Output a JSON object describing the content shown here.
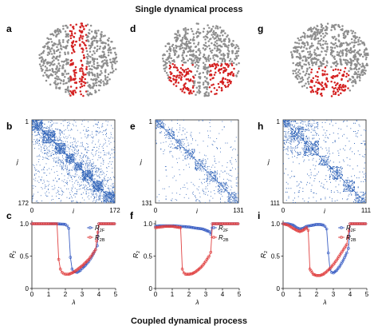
{
  "top_heading": "Single dynamical process",
  "bottom_heading": "Coupled dynamical process",
  "colors": {
    "grey_node": "#8e8e8e",
    "red_node": "#d42020",
    "matrix_blue": "#2f63b8",
    "forward": "#3b5fc4",
    "backward": "#e04141"
  },
  "columns": [
    {
      "brain": {
        "label": "a",
        "highlight": "midline"
      },
      "matrix": {
        "label": "b",
        "row_axis": "j",
        "col_axis": "i",
        "start_tick": "1",
        "zero_tick": "0",
        "end_tick": "172",
        "size": 172,
        "blocks": [
          [
            0,
            22
          ],
          [
            22,
            48
          ],
          [
            48,
            70
          ],
          [
            70,
            88
          ],
          [
            88,
            104
          ],
          [
            104,
            126
          ],
          [
            126,
            148
          ],
          [
            148,
            172
          ]
        ],
        "structure": "diagonal-band"
      },
      "chart": {
        "label": "c"
      }
    },
    {
      "brain": {
        "label": "d",
        "highlight": "posterior-lateral"
      },
      "matrix": {
        "label": "e",
        "row_axis": "j",
        "col_axis": "i",
        "start_tick": "1",
        "zero_tick": "0",
        "end_tick": "131",
        "size": 131,
        "blocks": [
          [
            0,
            14
          ],
          [
            14,
            30
          ],
          [
            30,
            46
          ],
          [
            46,
            62
          ],
          [
            62,
            80
          ],
          [
            80,
            98
          ],
          [
            98,
            114
          ],
          [
            114,
            131
          ]
        ],
        "structure": "two-cluster"
      },
      "chart": {
        "label": "f"
      }
    },
    {
      "brain": {
        "label": "g",
        "highlight": "posterior-midline"
      },
      "matrix": {
        "label": "h",
        "row_axis": "j",
        "col_axis": "i",
        "start_tick": "1",
        "zero_tick": "0",
        "end_tick": "111",
        "size": 111,
        "blocks": [
          [
            0,
            10
          ],
          [
            10,
            28
          ],
          [
            28,
            48
          ],
          [
            48,
            62
          ],
          [
            62,
            80
          ],
          [
            80,
            96
          ],
          [
            96,
            111
          ]
        ],
        "structure": "dense-cluster"
      },
      "chart": {
        "label": "i"
      }
    }
  ],
  "chart_data": [
    {
      "type": "scatter",
      "xlabel": "λ",
      "ylabel": "R2",
      "xticks": [
        "0",
        "1",
        "2",
        "3",
        "4",
        "5"
      ],
      "yticks": [
        "0",
        "0.5",
        "1.0"
      ],
      "xlim": [
        0,
        5
      ],
      "ylim": [
        0,
        1.05
      ],
      "legend_position": "right",
      "series": [
        {
          "name": "R2F",
          "label_main": "R",
          "label_sub": "2F",
          "x": [
            0,
            0.5,
            1,
            1.5,
            2,
            2.1,
            2.2,
            2.3,
            2.4,
            2.5,
            2.7,
            2.9,
            3.0,
            3.2,
            3.4,
            3.6,
            3.8,
            3.9,
            4.0,
            4.5,
            5.0
          ],
          "y": [
            1,
            1,
            1,
            1,
            0.99,
            0.97,
            0.93,
            0.48,
            0.3,
            0.26,
            0.25,
            0.28,
            0.31,
            0.36,
            0.42,
            0.5,
            0.6,
            0.66,
            1,
            1,
            1
          ]
        },
        {
          "name": "R2B",
          "label_main": "R",
          "label_sub": "2B",
          "x": [
            0,
            0.5,
            1,
            1.4,
            1.5,
            1.6,
            1.7,
            1.8,
            1.9,
            2.0,
            2.1,
            2.2,
            2.4,
            2.6,
            2.8,
            3.0,
            3.2,
            3.4,
            3.6,
            3.8,
            4.0,
            4.5,
            5.0
          ],
          "y": [
            1,
            1,
            1,
            1,
            1,
            0.45,
            0.3,
            0.25,
            0.23,
            0.22,
            0.22,
            0.22,
            0.24,
            0.27,
            0.31,
            0.35,
            0.4,
            0.45,
            0.52,
            0.6,
            1,
            1,
            1
          ]
        }
      ]
    },
    {
      "type": "scatter",
      "xlabel": "λ",
      "ylabel": "R2",
      "xticks": [
        "0",
        "1",
        "2",
        "3",
        "4",
        "5"
      ],
      "yticks": [
        "0",
        "0.5",
        "1.0"
      ],
      "xlim": [
        0,
        5
      ],
      "ylim": [
        0,
        1.05
      ],
      "legend_position": "right",
      "series": [
        {
          "name": "R2F",
          "label_main": "R",
          "label_sub": "2F",
          "x": [
            0,
            0.3,
            0.6,
            1,
            1.5,
            2,
            2.5,
            2.8,
            3.0,
            3.2,
            3.3,
            3.4,
            3.6,
            3.8,
            4.0,
            4.5,
            5.0
          ],
          "y": [
            0.96,
            0.97,
            0.97,
            0.97,
            0.96,
            0.95,
            0.93,
            0.92,
            0.9,
            0.88,
            0.84,
            1,
            1,
            1,
            1,
            1,
            1
          ]
        },
        {
          "name": "R2B",
          "label_main": "R",
          "label_sub": "2B",
          "x": [
            0,
            0.3,
            0.6,
            1,
            1.5,
            1.6,
            1.7,
            1.8,
            2.0,
            2.2,
            2.4,
            2.6,
            2.8,
            3.0,
            3.2,
            3.3,
            3.4,
            3.6,
            3.8,
            4.0,
            4.5,
            5.0
          ],
          "y": [
            0.94,
            0.95,
            0.96,
            0.96,
            0.94,
            0.3,
            0.24,
            0.22,
            0.22,
            0.23,
            0.26,
            0.3,
            0.35,
            0.42,
            0.5,
            0.56,
            1,
            1,
            1,
            1,
            1,
            1
          ]
        }
      ]
    },
    {
      "type": "scatter",
      "xlabel": "λ",
      "ylabel": "R2",
      "xticks": [
        "0",
        "1",
        "2",
        "3",
        "4",
        "5"
      ],
      "yticks": [
        "0",
        "0.5",
        "1.0"
      ],
      "xlim": [
        0,
        5
      ],
      "ylim": [
        0,
        1.05
      ],
      "legend_position": "right",
      "series": [
        {
          "name": "R2F",
          "label_main": "R",
          "label_sub": "2F",
          "x": [
            0,
            0.3,
            0.6,
            0.8,
            1.0,
            1.2,
            1.4,
            1.6,
            1.8,
            2.0,
            2.2,
            2.4,
            2.5,
            2.6,
            2.7,
            2.8,
            2.9,
            3.0,
            3.2,
            3.4,
            3.6,
            3.8,
            3.9,
            4.0,
            4.5,
            5.0
          ],
          "y": [
            1,
            1,
            0.98,
            0.94,
            0.92,
            0.93,
            0.96,
            0.97,
            0.98,
            0.99,
            0.99,
            0.98,
            0.96,
            0.92,
            0.55,
            0.3,
            0.25,
            0.24,
            0.28,
            0.35,
            0.44,
            0.55,
            0.62,
            1,
            1,
            1
          ]
        },
        {
          "name": "R2B",
          "label_main": "R",
          "label_sub": "2B",
          "x": [
            0,
            0.3,
            0.6,
            0.8,
            1.0,
            1.2,
            1.4,
            1.5,
            1.6,
            1.8,
            2.0,
            2.2,
            2.4,
            2.6,
            2.8,
            3.0,
            3.2,
            3.4,
            3.6,
            3.8,
            4.0,
            4.5,
            5.0
          ],
          "y": [
            1,
            0.98,
            0.93,
            0.9,
            0.88,
            0.9,
            0.94,
            0.9,
            0.3,
            0.22,
            0.2,
            0.2,
            0.22,
            0.26,
            0.31,
            0.37,
            0.44,
            0.52,
            0.6,
            0.68,
            1,
            1,
            1
          ]
        }
      ]
    }
  ]
}
